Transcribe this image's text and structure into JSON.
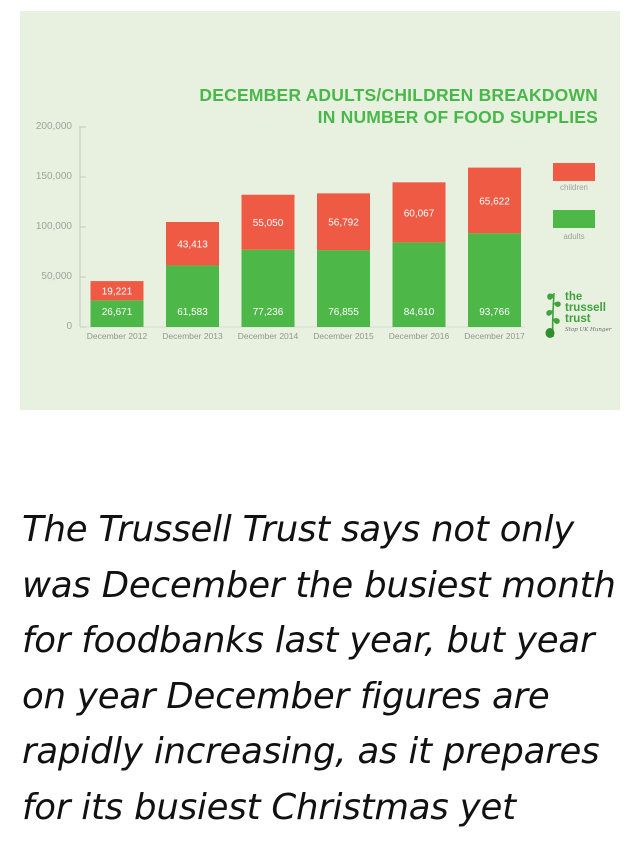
{
  "chart_data": {
    "type": "bar",
    "stacked": true,
    "title_lines": [
      "DECEMBER ADULTS/CHILDREN BREAKDOWN",
      "IN NUMBER OF FOOD SUPPLIES"
    ],
    "categories": [
      "December 2012",
      "December 2013",
      "December 2014",
      "December 2015",
      "December 2016",
      "December 2017"
    ],
    "series": [
      {
        "name": "adults",
        "values": [
          26671,
          61583,
          77236,
          76855,
          84610,
          93766
        ],
        "labels": [
          "26,671",
          "61,583",
          "77,236",
          "76,855",
          "84,610",
          "93,766"
        ],
        "color": "#4db748"
      },
      {
        "name": "children",
        "values": [
          19221,
          43413,
          55050,
          56792,
          60067,
          65622
        ],
        "labels": [
          "19,221",
          "43,413",
          "55,050",
          "56,792",
          "60,067",
          "65,622"
        ],
        "color": "#ef5a44"
      }
    ],
    "yticks": [
      "0",
      "50,000",
      "100,000",
      "150,000",
      "200,000"
    ],
    "ylim": [
      0,
      200000
    ],
    "grid": false,
    "legend_position": "right"
  },
  "logo": {
    "lines": [
      "the",
      "trussell",
      "trust"
    ],
    "tagline": "Stop UK Hunger"
  },
  "colors": {
    "background": "#e8f1e0",
    "title": "#49b749",
    "adults": "#4db748",
    "children": "#ef5a44"
  },
  "caption": "The Trussell Trust says not only was December the busiest month for foodbanks last year, but year on year December figures are rapidly increasing, as it prepares for its busiest Christmas yet"
}
